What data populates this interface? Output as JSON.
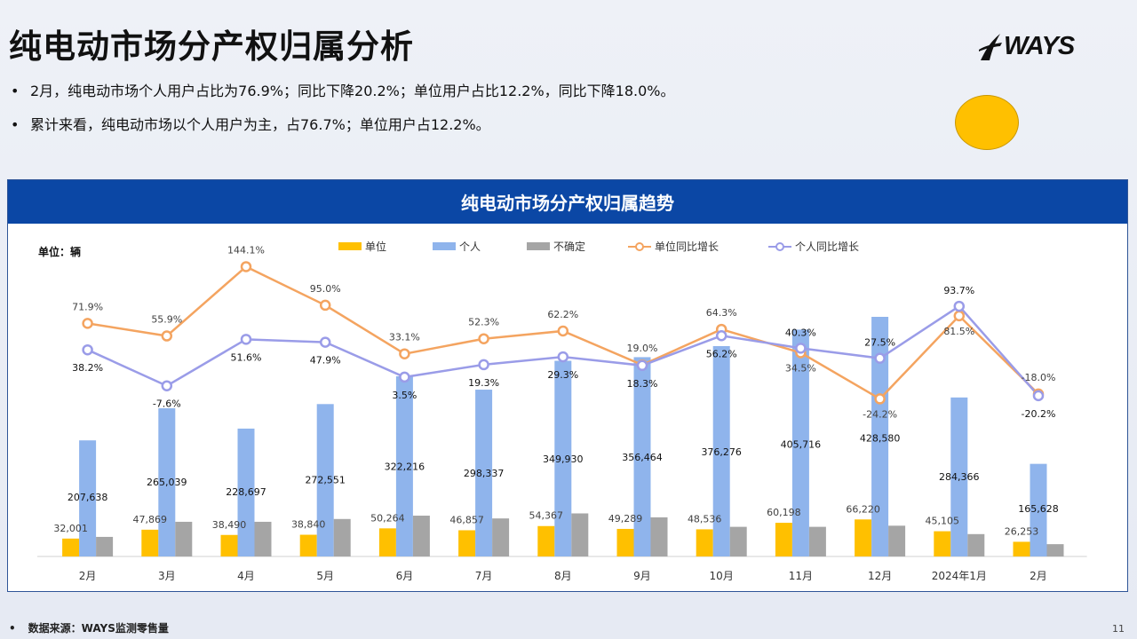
{
  "page": {
    "title": "纯电动市场分产权归属分析",
    "logo_text": "WAYS",
    "bullets": [
      "2月，纯电动市场个人用户占比为76.9%；同比下降20.2%；单位用户占比12.2%，同比下降18.0%。",
      "累计来看，纯电动市场以个人用户为主，占76.7%；单位用户占12.2%。"
    ],
    "footer": "数据来源：WAYS监测零售量",
    "page_number": "11"
  },
  "chart_data": {
    "type": "bar",
    "title": "纯电动市场分产权归属趋势",
    "unit_label": "单位：辆",
    "categories": [
      "2月",
      "3月",
      "4月",
      "5月",
      "6月",
      "7月",
      "8月",
      "9月",
      "10月",
      "11月",
      "12月",
      "2024年1月",
      "2月"
    ],
    "series": [
      {
        "name": "单位",
        "type": "bar",
        "color": "#ffc000",
        "values": [
          32001,
          47869,
          38490,
          38840,
          50264,
          46857,
          54367,
          49289,
          48536,
          60198,
          66220,
          45105,
          26253
        ]
      },
      {
        "name": "个人",
        "type": "bar",
        "color": "#8fb4ec",
        "values": [
          207638,
          265039,
          228697,
          272551,
          322216,
          298337,
          349930,
          356464,
          376276,
          405716,
          428580,
          284366,
          165628
        ]
      },
      {
        "name": "不确定",
        "type": "bar",
        "color": "#a5a5a5",
        "values": [
          35000,
          62000,
          62000,
          67000,
          73000,
          68000,
          77000,
          70000,
          53000,
          53000,
          55000,
          40000,
          22000
        ]
      },
      {
        "name": "单位同比增长",
        "type": "line",
        "color": "#f4a460",
        "values": [
          71.9,
          55.9,
          144.1,
          95.0,
          33.1,
          52.3,
          62.2,
          19.0,
          64.3,
          34.5,
          -24.2,
          81.5,
          -18.0
        ]
      },
      {
        "name": "个人同比增长",
        "type": "line",
        "color": "#9a9ce8",
        "values": [
          38.2,
          -7.6,
          51.6,
          47.9,
          3.5,
          19.3,
          29.3,
          18.3,
          56.2,
          40.3,
          27.5,
          93.7,
          -20.2
        ]
      }
    ],
    "bar_labels_unit": [
      "32,001",
      "47,869",
      "38,490",
      "38,840",
      "50,264",
      "46,857",
      "54,367",
      "49,289",
      "48,536",
      "60,198",
      "66,220",
      "45,105",
      "26,253"
    ],
    "bar_labels_personal": [
      "207,638",
      "265,039",
      "228,697",
      "272,551",
      "322,216",
      "298,337",
      "349,930",
      "356,464",
      "376,276",
      "405,716",
      "428,580",
      "284,366",
      "165,628"
    ],
    "line_labels_unit": [
      "71.9%",
      "55.9%",
      "144.1%",
      "95.0%",
      "33.1%",
      "52.3%",
      "62.2%",
      "19.0%",
      "64.3%",
      "34.5%",
      "-24.2%",
      "81.5%",
      "-18.0%"
    ],
    "line_labels_personal": [
      "38.2%",
      "-7.6%",
      "51.6%",
      "47.9%",
      "3.5%",
      "19.3%",
      "29.3%",
      "18.3%",
      "56.2%",
      "40.3%",
      "27.5%",
      "93.7%",
      "-20.2%"
    ],
    "legend_position": "top"
  }
}
